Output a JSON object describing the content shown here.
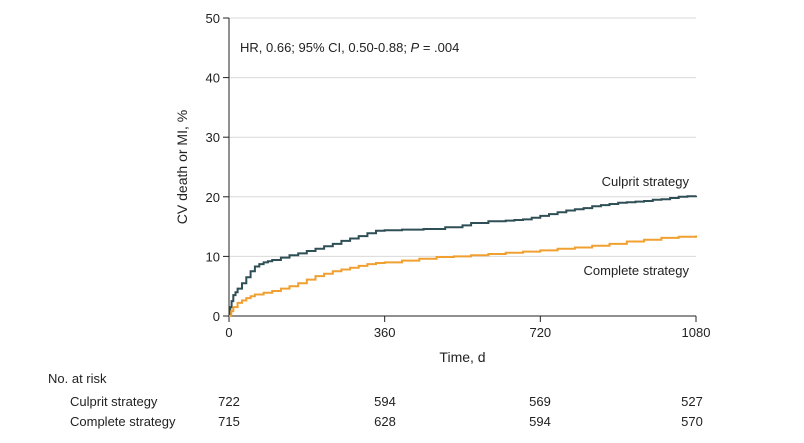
{
  "chart_data": {
    "type": "line",
    "annotation": "HR, 0.66; 95% CI, 0.50-0.88; ",
    "annotation_p": "P",
    "annotation_p_value": " = .004",
    "xlabel": "Time, d",
    "ylabel": "CV death or MI, %",
    "xlim": [
      0,
      1080
    ],
    "ylim": [
      0,
      50
    ],
    "xticks": [
      0,
      360,
      720,
      1080
    ],
    "yticks": [
      0,
      10,
      20,
      30,
      40,
      50
    ],
    "grid": "horizontal",
    "series": [
      {
        "name": "Culprit strategy",
        "color": "#2f4f56",
        "x": [
          0,
          3,
          6,
          10,
          15,
          20,
          30,
          40,
          50,
          60,
          70,
          80,
          90,
          100,
          120,
          140,
          160,
          180,
          200,
          220,
          240,
          260,
          280,
          300,
          320,
          340,
          360,
          400,
          450,
          500,
          540,
          560,
          600,
          640,
          660,
          680,
          700,
          720,
          740,
          760,
          780,
          800,
          820,
          840,
          860,
          880,
          900,
          920,
          940,
          960,
          980,
          1000,
          1020,
          1040,
          1060,
          1080
        ],
        "y": [
          0,
          1.5,
          2.5,
          3.5,
          4.0,
          4.6,
          5.5,
          6.5,
          7.5,
          8.3,
          8.7,
          9.0,
          9.2,
          9.4,
          9.8,
          10.2,
          10.5,
          10.9,
          11.3,
          11.7,
          12.1,
          12.6,
          13.0,
          13.4,
          13.9,
          14.3,
          14.4,
          14.5,
          14.6,
          14.9,
          15.2,
          15.6,
          15.9,
          16.0,
          16.1,
          16.2,
          16.5,
          16.8,
          17.1,
          17.4,
          17.7,
          17.9,
          18.1,
          18.4,
          18.6,
          18.8,
          19.0,
          19.1,
          19.2,
          19.3,
          19.5,
          19.6,
          19.8,
          20.0,
          20.1,
          20.2
        ]
      },
      {
        "name": "Complete strategy",
        "color": "#f0a030",
        "x": [
          0,
          5,
          10,
          20,
          30,
          40,
          50,
          60,
          80,
          100,
          120,
          140,
          160,
          180,
          200,
          220,
          240,
          260,
          280,
          300,
          320,
          340,
          360,
          400,
          440,
          480,
          520,
          560,
          600,
          640,
          680,
          720,
          760,
          800,
          840,
          880,
          920,
          960,
          1000,
          1040,
          1080
        ],
        "y": [
          0,
          0.8,
          1.5,
          2.2,
          2.6,
          3.0,
          3.3,
          3.6,
          3.9,
          4.2,
          4.6,
          5.0,
          5.5,
          6.1,
          6.7,
          7.1,
          7.5,
          7.8,
          8.1,
          8.4,
          8.7,
          8.9,
          9.0,
          9.3,
          9.6,
          9.9,
          10.0,
          10.2,
          10.4,
          10.6,
          10.8,
          11.0,
          11.3,
          11.5,
          11.8,
          12.1,
          12.5,
          12.8,
          13.1,
          13.3,
          13.5
        ]
      }
    ]
  },
  "risk_table": {
    "title": "No. at risk",
    "rows": [
      {
        "label": "Culprit strategy",
        "values": [
          "722",
          "594",
          "569",
          "527"
        ]
      },
      {
        "label": "Complete strategy",
        "values": [
          "715",
          "628",
          "594",
          "570"
        ]
      }
    ]
  }
}
